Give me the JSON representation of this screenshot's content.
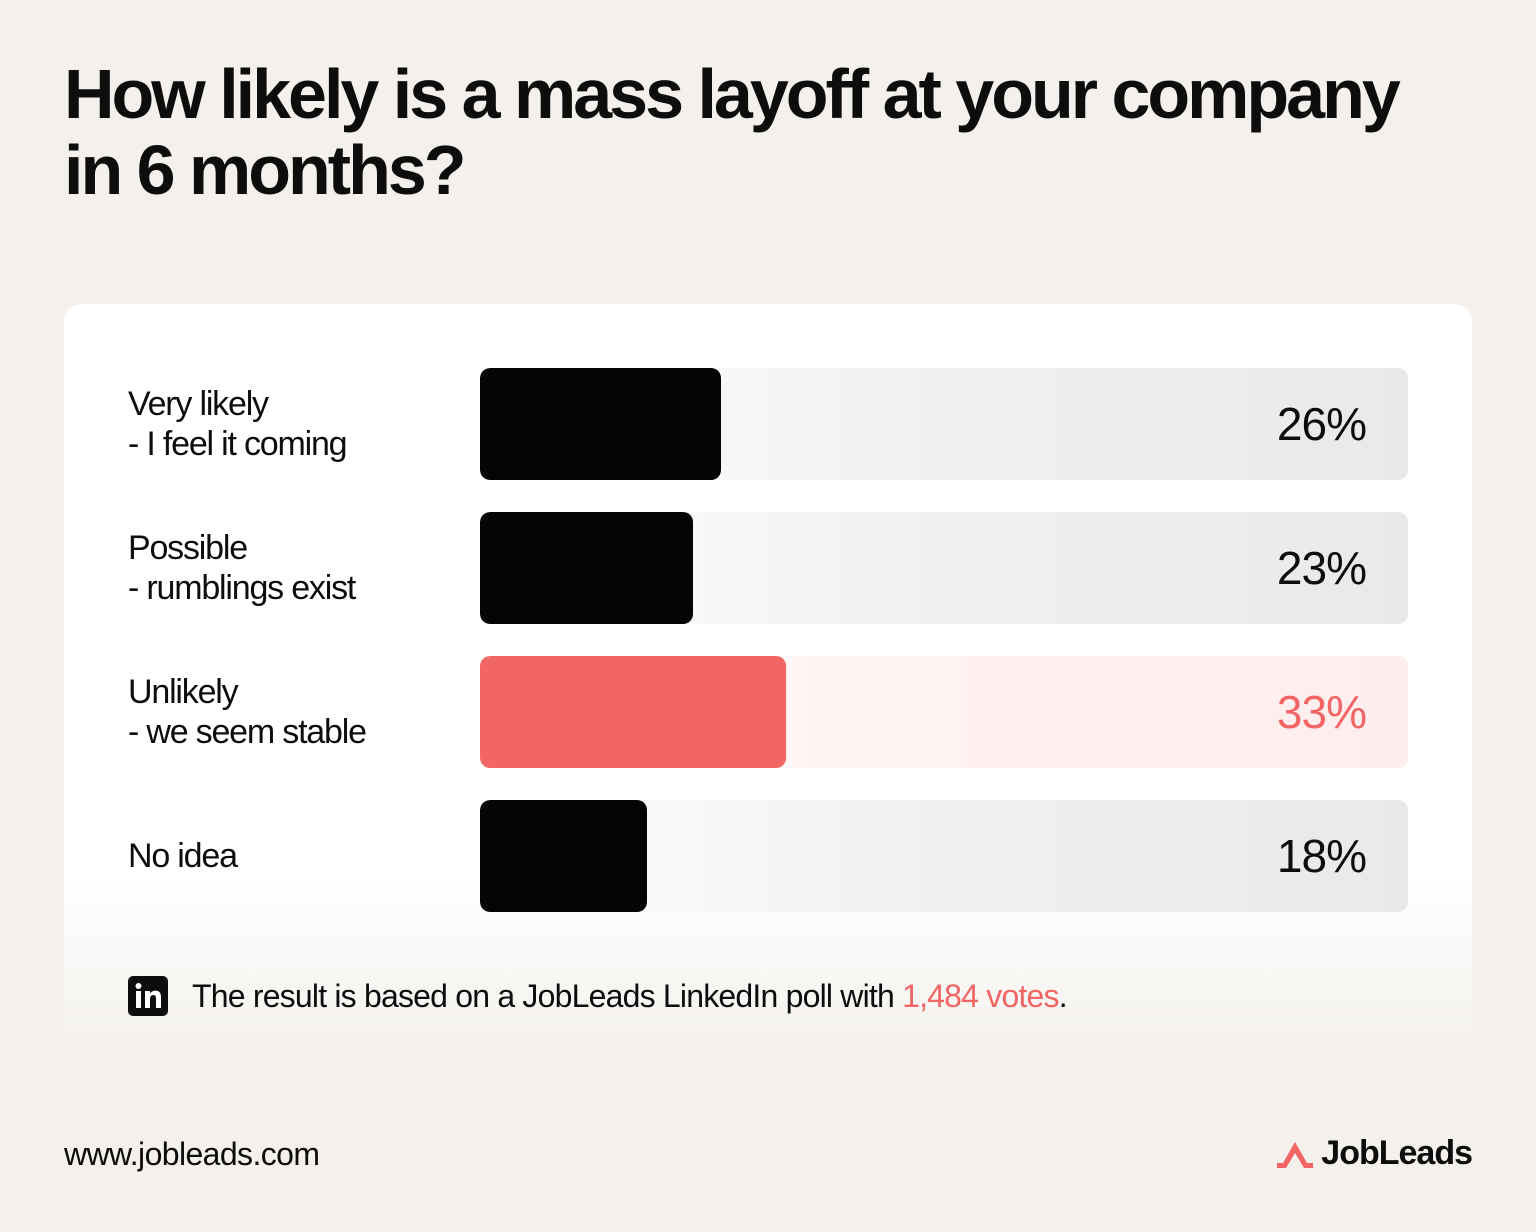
{
  "title": "How likely is a mass layoff at your company in 6 months?",
  "colors": {
    "bar": "#050505",
    "highlight": "#f26565",
    "background": "#f4f1ec"
  },
  "chart_data": {
    "type": "bar",
    "orientation": "horizontal",
    "title": "How likely is a mass layoff at your company in 6 months?",
    "categories": [
      [
        "Very likely",
        "- I feel it coming"
      ],
      [
        "Possible",
        "- rumblings exist"
      ],
      [
        "Unlikely",
        "- we seem stable"
      ],
      [
        "No idea"
      ]
    ],
    "values": [
      26,
      23,
      33,
      18
    ],
    "value_labels": [
      "26%",
      "23%",
      "33%",
      "18%"
    ],
    "highlight_index": 2,
    "xlim": [
      0,
      100
    ],
    "unit": "%"
  },
  "source": {
    "icon": "linkedin-icon",
    "prefix": "The result is based on a JobLeads LinkedIn poll with ",
    "votes": "1,484 votes",
    "suffix": "."
  },
  "footer": {
    "url": "www.jobleads.com",
    "brand": "JobLeads",
    "brand_icon": "jobleads-logo-icon"
  }
}
